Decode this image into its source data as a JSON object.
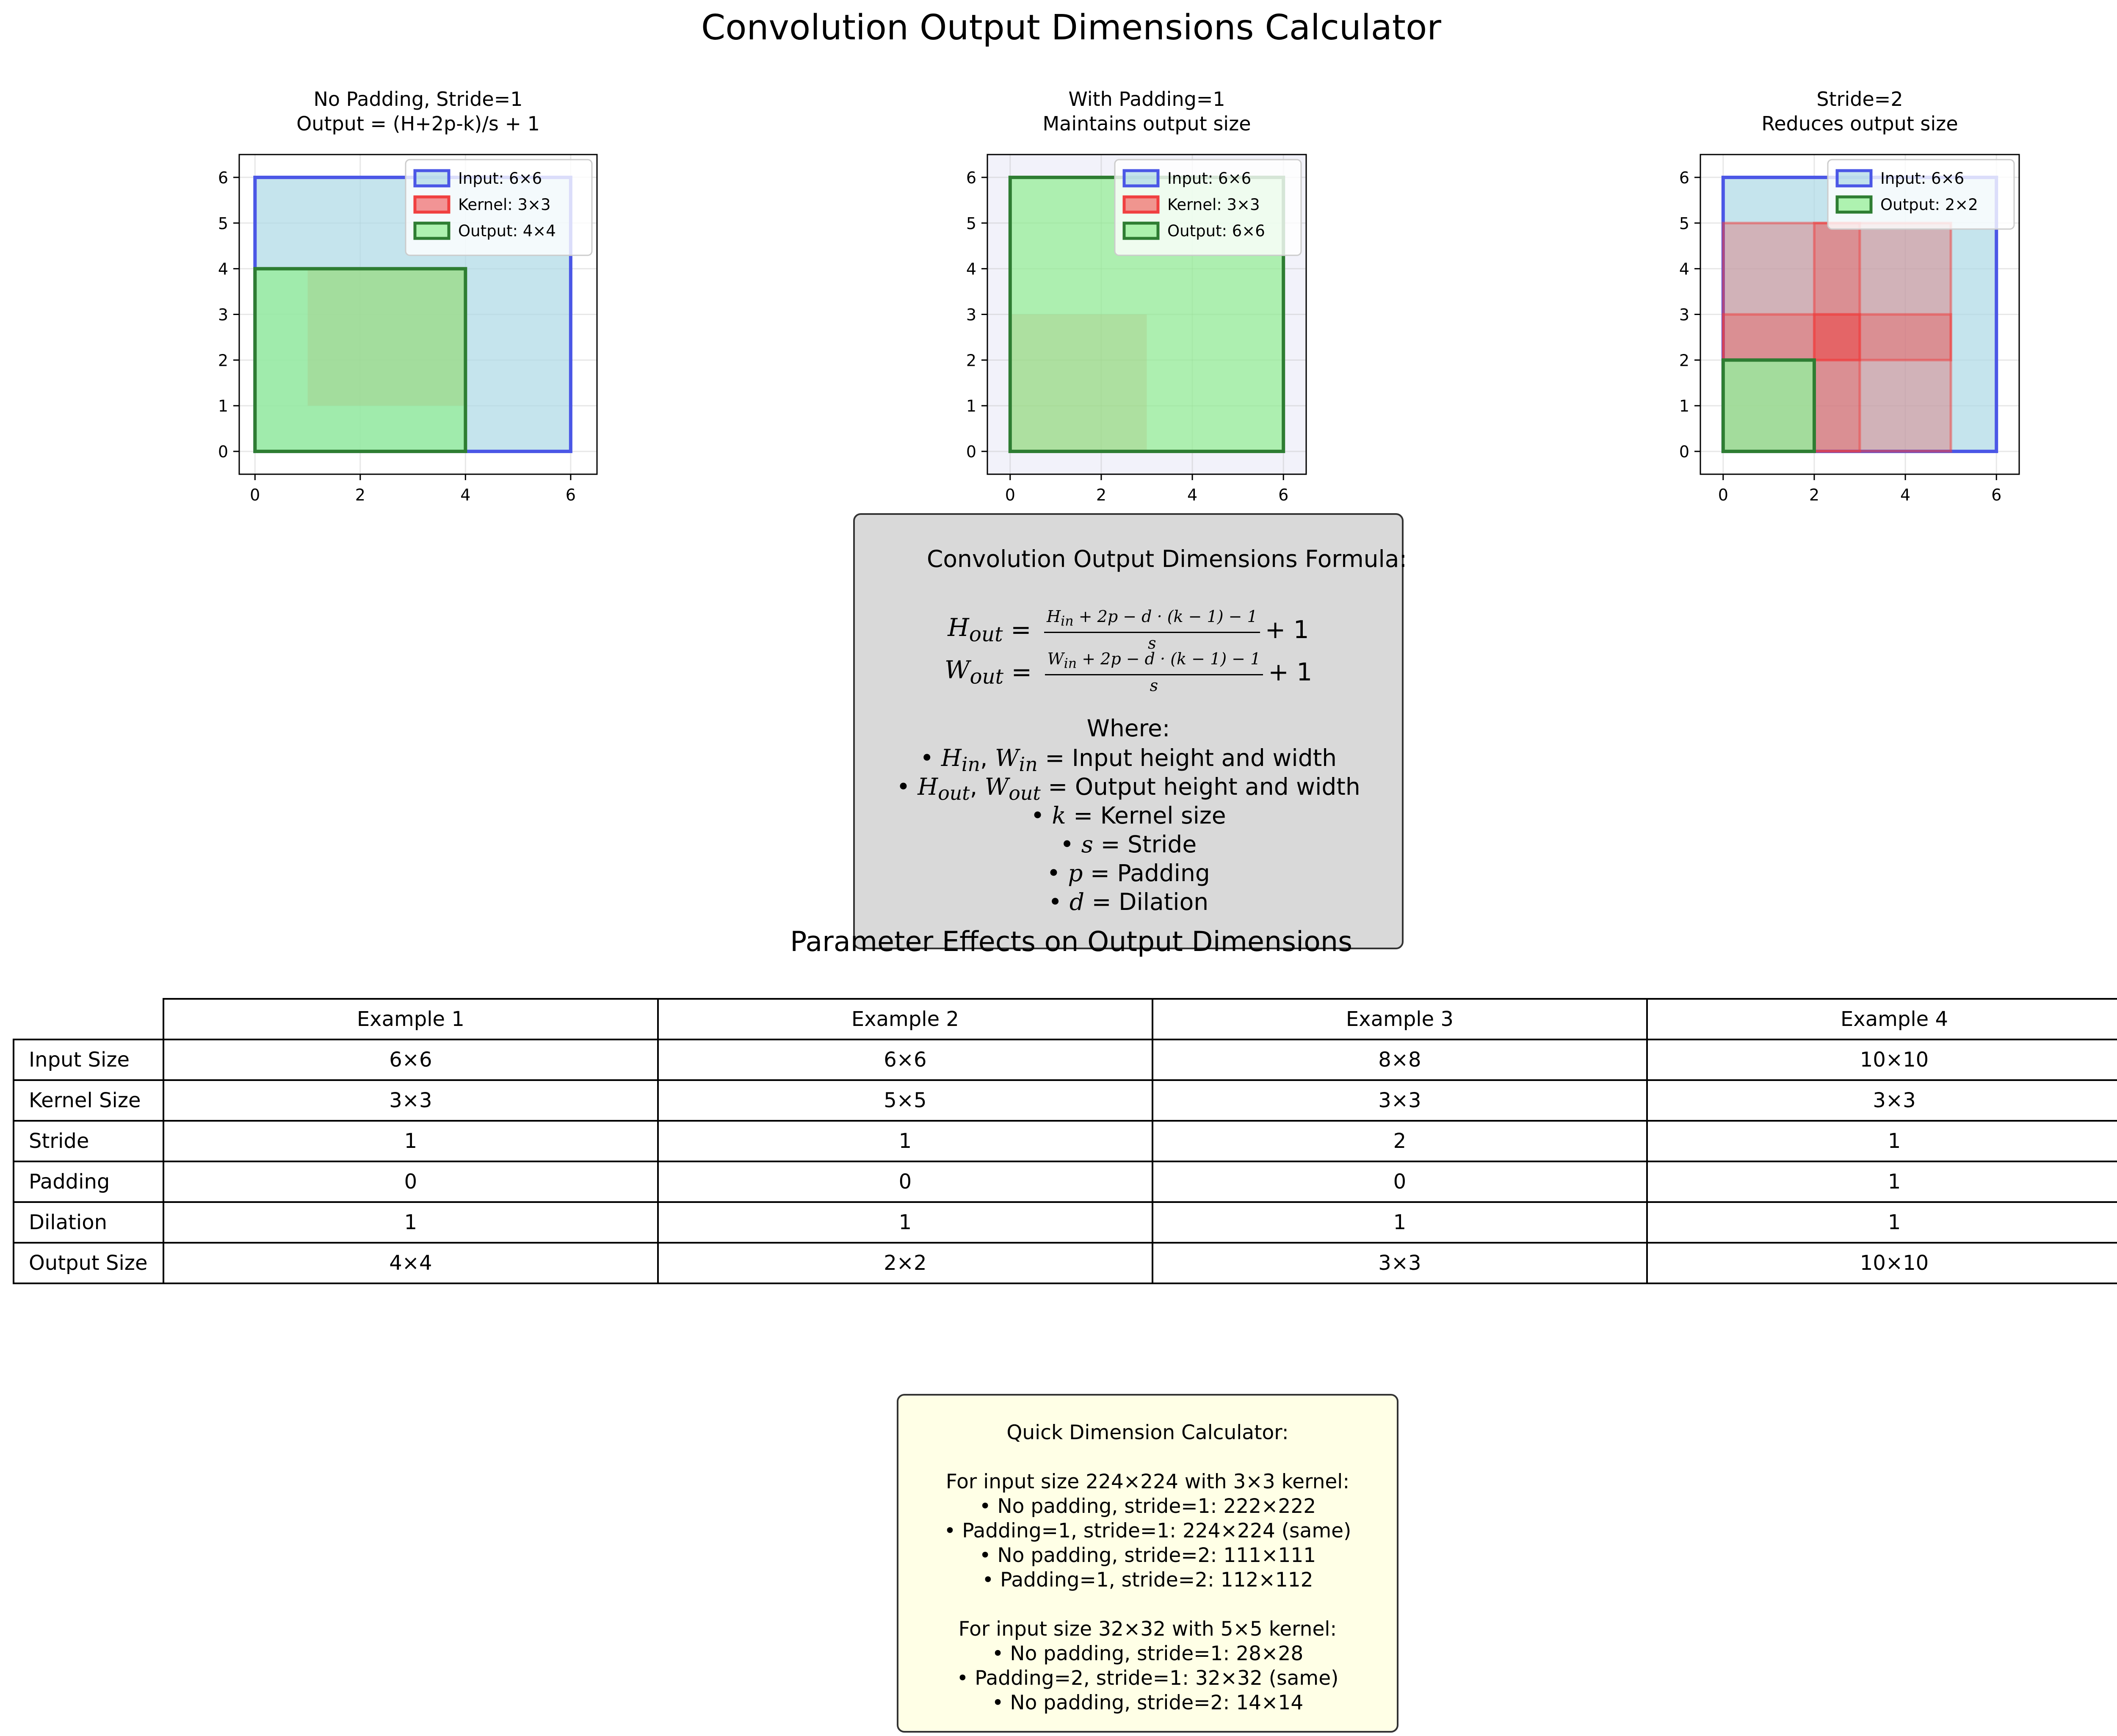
{
  "figure_title": "Convolution Output Dimensions Calculator",
  "chart_data": [
    {
      "type": "diagram",
      "title": "No Padding, Stride=1\nOutput = (H+2p-k)/s + 1",
      "xlim": [
        -0.3,
        6.5
      ],
      "ylim": [
        -0.5,
        6.5
      ],
      "xticks": [
        0,
        2,
        4,
        6
      ],
      "yticks": [
        0,
        1,
        2,
        3,
        4,
        5,
        6
      ],
      "grid": true,
      "legend": "top-right",
      "legend_entries": [
        "Input: 6×6",
        "Kernel: 3×3",
        "Output: 4×4"
      ],
      "rects": [
        {
          "role": "input",
          "x": 0,
          "y": 0,
          "w": 6,
          "h": 6
        },
        {
          "role": "kernel",
          "x": 1,
          "y": 1,
          "w": 3,
          "h": 3
        },
        {
          "role": "output",
          "x": 0,
          "y": 0,
          "w": 4,
          "h": 4
        }
      ]
    },
    {
      "type": "diagram",
      "title": "With Padding=1\nMaintains output size",
      "xlim": [
        -0.5,
        6.5
      ],
      "ylim": [
        -0.5,
        6.5
      ],
      "xticks": [
        0,
        2,
        4,
        6
      ],
      "yticks": [
        0,
        1,
        2,
        3,
        4,
        5,
        6
      ],
      "grid": true,
      "legend": "top-right",
      "legend_entries": [
        "Input: 6×6",
        "Kernel: 3×3",
        "Output: 6×6"
      ],
      "rects": [
        {
          "role": "padded-input",
          "x": -0.5,
          "y": -0.5,
          "w": 7,
          "h": 7
        },
        {
          "role": "kernel",
          "x": 0,
          "y": 0,
          "w": 3,
          "h": 3
        },
        {
          "role": "output",
          "x": 0,
          "y": 0,
          "w": 6,
          "h": 6
        }
      ]
    },
    {
      "type": "diagram",
      "title": "Stride=2\nReduces output size",
      "xlim": [
        -0.5,
        6.5
      ],
      "ylim": [
        -0.5,
        6.5
      ],
      "xticks": [
        0,
        2,
        4,
        6
      ],
      "yticks": [
        0,
        1,
        2,
        3,
        4,
        5,
        6
      ],
      "grid": true,
      "legend": "top-right",
      "legend_entries": [
        "Input: 6×6",
        "Output: 2×2"
      ],
      "rects": [
        {
          "role": "input",
          "x": 0,
          "y": 0,
          "w": 6,
          "h": 6
        },
        {
          "role": "kernel-step",
          "x": 0,
          "y": 0,
          "w": 3,
          "h": 3
        },
        {
          "role": "kernel-step",
          "x": 2,
          "y": 0,
          "w": 3,
          "h": 3
        },
        {
          "role": "kernel-step",
          "x": 0,
          "y": 2,
          "w": 3,
          "h": 3
        },
        {
          "role": "kernel-step",
          "x": 2,
          "y": 2,
          "w": 3,
          "h": 3
        },
        {
          "role": "output",
          "x": 0,
          "y": 0,
          "w": 2,
          "h": 2
        }
      ]
    },
    {
      "type": "table",
      "title": "Parameter Effects on Output Dimensions",
      "columns": [
        "Example 1",
        "Example 2",
        "Example 3",
        "Example 4"
      ],
      "rows": [
        {
          "label": "Input Size",
          "values": [
            "6×6",
            "6×6",
            "8×8",
            "10×10"
          ]
        },
        {
          "label": "Kernel Size",
          "values": [
            "3×3",
            "5×5",
            "3×3",
            "3×3"
          ]
        },
        {
          "label": "Stride",
          "values": [
            "1",
            "1",
            "2",
            "1"
          ]
        },
        {
          "label": "Padding",
          "values": [
            "0",
            "0",
            "0",
            "1"
          ]
        },
        {
          "label": "Dilation",
          "values": [
            "1",
            "1",
            "1",
            "1"
          ]
        },
        {
          "label": "Output Size",
          "values": [
            "4×4",
            "2×2",
            "3×3",
            "10×10"
          ]
        }
      ]
    }
  ],
  "formula_box": {
    "heading": "Convolution Output Dimensions Formula:",
    "h_out": {
      "lhs": "H",
      "lhs_sub": "out",
      "num_var": "H",
      "num_sub": "in",
      "num_rest": " + 2p − d · (k − 1) − 1",
      "den": "s",
      "tail": "+ 1"
    },
    "w_out": {
      "lhs": "W",
      "lhs_sub": "out",
      "num_var": "W",
      "num_sub": "in",
      "num_rest": " + 2p − d · (k − 1) − 1",
      "den": "s",
      "tail": "+ 1"
    },
    "where": "Where:",
    "items": [
      {
        "vars": [
          {
            "v": "H",
            "sub": "in"
          },
          {
            "v": "W",
            "sub": "in"
          }
        ],
        "text": " = Input height and width"
      },
      {
        "vars": [
          {
            "v": "H",
            "sub": "out"
          },
          {
            "v": "W",
            "sub": "out"
          }
        ],
        "text": " = Output height and width"
      },
      {
        "vars": [
          {
            "v": "k",
            "sub": ""
          }
        ],
        "text": " = Kernel size"
      },
      {
        "vars": [
          {
            "v": "s",
            "sub": ""
          }
        ],
        "text": " = Stride"
      },
      {
        "vars": [
          {
            "v": "p",
            "sub": ""
          }
        ],
        "text": " = Padding"
      },
      {
        "vars": [
          {
            "v": "d",
            "sub": ""
          }
        ],
        "text": " = Dilation"
      }
    ]
  },
  "calculator_box": {
    "lines": [
      "Quick Dimension Calculator:",
      "",
      "For input size 224×224 with 3×3 kernel:",
      "• No padding, stride=1: 222×222",
      "• Padding=1, stride=1: 224×224 (same)",
      "• No padding, stride=2: 111×111",
      "• Padding=1, stride=2: 112×112",
      "",
      "For input size 32×32 with 5×5 kernel:",
      "• No padding, stride=1: 28×28",
      "• Padding=2, stride=1: 32×32 (same)",
      "• No padding, stride=2: 14×14"
    ]
  },
  "colors": {
    "input_fill": "#add8e6",
    "input_edge": "#4b57e6",
    "kernel_fill": "#f04040",
    "output_fill": "#90ee90",
    "output_edge": "#2e7d32",
    "padded_bg": "#f2f2fa",
    "formula_bg": "#d9d9d9",
    "calc_bg": "#ffffe6"
  }
}
